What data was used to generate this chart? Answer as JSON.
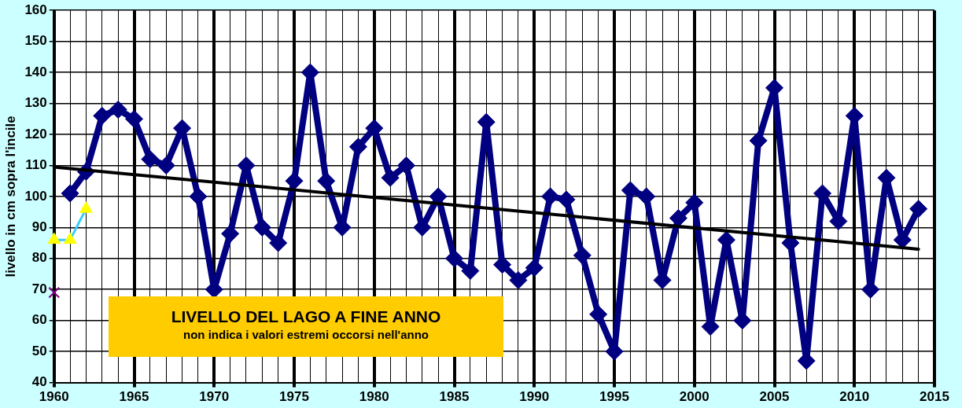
{
  "chart_data": {
    "type": "line",
    "title": "LIVELLO DEL LAGO A FINE ANNO",
    "subtitle": "non indica i valori estremi occorsi nell'anno",
    "ylabel": "livello in cm sopra l'incile",
    "xlim": [
      1960,
      2015
    ],
    "ylim": [
      40,
      160
    ],
    "xticks": [
      1960,
      {
        "value": 1961,
        "label": null
      },
      {
        "value": 1962,
        "label": null
      },
      {
        "value": 1963,
        "label": null
      },
      {
        "value": 1964,
        "label": null
      },
      1965,
      {
        "value": 1966,
        "label": null
      },
      {
        "value": 1967,
        "label": null
      },
      {
        "value": 1968,
        "label": null
      },
      {
        "value": 1969,
        "label": null
      },
      1970,
      {
        "value": 1971,
        "label": null
      },
      {
        "value": 1972,
        "label": null
      },
      {
        "value": 1973,
        "label": null
      },
      {
        "value": 1974,
        "label": null
      },
      1975,
      {
        "value": 1976,
        "label": null
      },
      {
        "value": 1977,
        "label": null
      },
      {
        "value": 1978,
        "label": null
      },
      {
        "value": 1979,
        "label": null
      },
      1980,
      {
        "value": 1981,
        "label": null
      },
      {
        "value": 1982,
        "label": null
      },
      {
        "value": 1983,
        "label": null
      },
      {
        "value": 1984,
        "label": null
      },
      1985,
      {
        "value": 1986,
        "label": null
      },
      {
        "value": 1987,
        "label": null
      },
      {
        "value": 1988,
        "label": null
      },
      {
        "value": 1989,
        "label": null
      },
      1990,
      {
        "value": 1991,
        "label": null
      },
      {
        "value": 1992,
        "label": null
      },
      {
        "value": 1993,
        "label": null
      },
      {
        "value": 1994,
        "label": null
      },
      1995,
      {
        "value": 1996,
        "label": null
      },
      {
        "value": 1997,
        "label": null
      },
      {
        "value": 1998,
        "label": null
      },
      {
        "value": 1999,
        "label": null
      },
      2000,
      {
        "value": 2001,
        "label": null
      },
      {
        "value": 2002,
        "label": null
      },
      {
        "value": 2003,
        "label": null
      },
      {
        "value": 2004,
        "label": null
      },
      2005,
      {
        "value": 2006,
        "label": null
      },
      {
        "value": 2007,
        "label": null
      },
      {
        "value": 2008,
        "label": null
      },
      {
        "value": 2009,
        "label": null
      },
      2010,
      {
        "value": 2011,
        "label": null
      },
      {
        "value": 2012,
        "label": null
      },
      {
        "value": 2013,
        "label": null
      },
      {
        "value": 2014,
        "label": null
      },
      2015
    ],
    "yticks": [
      40,
      50,
      60,
      70,
      80,
      90,
      100,
      110,
      120,
      130,
      140,
      150,
      160
    ],
    "grid": true,
    "series": [
      {
        "color": "#000080",
        "marker": "diamond",
        "x": [
          1961,
          1962,
          1963,
          1964,
          1965,
          1966,
          1967,
          1968,
          1969,
          1970,
          1971,
          1972,
          1973,
          1974,
          1975,
          1976,
          1977,
          1978,
          1979,
          1980,
          1981,
          1982,
          1983,
          1984,
          1985,
          1986,
          1987,
          1988,
          1989,
          1990,
          1991,
          1992,
          1993,
          1994,
          1995,
          1996,
          1997,
          1998,
          1999,
          2000,
          2001,
          2002,
          2003,
          2004,
          2005,
          2006,
          2007,
          2008,
          2009,
          2010,
          2011,
          2012,
          2013,
          2014
        ],
        "values": [
          101,
          108,
          126,
          128,
          125,
          112,
          110,
          122,
          100,
          70,
          88,
          110,
          90,
          85,
          105,
          140,
          105,
          90,
          116,
          122,
          106,
          110,
          90,
          100,
          80,
          76,
          124,
          78,
          73,
          77,
          100,
          99,
          81,
          62,
          50,
          102,
          100,
          73,
          93,
          98,
          58,
          86,
          60,
          118,
          135,
          85,
          47,
          101,
          92,
          126,
          70,
          106,
          86,
          96
        ]
      },
      {
        "color": "#000000",
        "marker": "none",
        "x": [
          1960,
          2014
        ],
        "values": [
          109.5,
          83
        ]
      },
      {
        "color": "#33ccff",
        "marker": "triangle",
        "x": [
          1960,
          1961,
          1962
        ],
        "values": [
          86,
          86,
          96
        ]
      },
      {
        "type": "scatter",
        "color": "#800080",
        "marker": "cross",
        "x": [
          1960
        ],
        "values": [
          69
        ]
      }
    ]
  }
}
